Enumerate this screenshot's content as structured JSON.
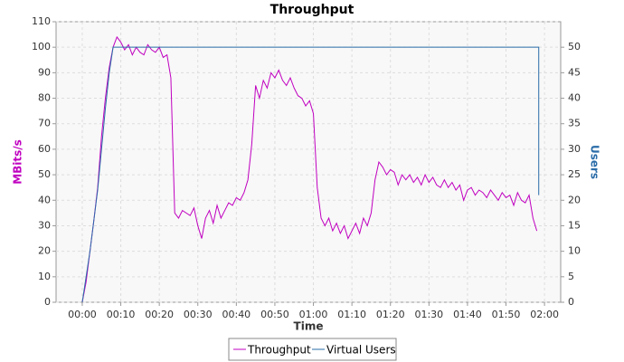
{
  "chart_data": {
    "type": "line",
    "title": "Throughput",
    "x_label": "Time",
    "y_label": "MBits/s",
    "y2_label": "Users",
    "xlim": [
      -6.8,
      124.2
    ],
    "xticks": [
      {
        "value": 0,
        "label": "00:00"
      },
      {
        "value": 10,
        "label": "00:10"
      },
      {
        "value": 20,
        "label": "00:20"
      },
      {
        "value": 30,
        "label": "00:30"
      },
      {
        "value": 40,
        "label": "00:40"
      },
      {
        "value": 50,
        "label": "00:50"
      },
      {
        "value": 60,
        "label": "01:00"
      },
      {
        "value": 70,
        "label": "01:10"
      },
      {
        "value": 80,
        "label": "01:20"
      },
      {
        "value": 90,
        "label": "01:30"
      },
      {
        "value": 100,
        "label": "01:40"
      },
      {
        "value": 110,
        "label": "01:50"
      },
      {
        "value": 120,
        "label": "02:00"
      }
    ],
    "ylim": [
      0,
      110
    ],
    "yticks": [
      0,
      10,
      20,
      30,
      40,
      50,
      60,
      70,
      80,
      90,
      100,
      110
    ],
    "y2lim": [
      0,
      55
    ],
    "y2ticks": [
      0,
      5,
      10,
      15,
      20,
      25,
      30,
      35,
      40,
      45,
      50
    ],
    "grid": true,
    "series": [
      {
        "name": "Throughput",
        "color": "#c000c0",
        "axis": "y",
        "x": [
          0,
          1,
          2,
          3,
          4,
          5,
          6,
          7,
          8,
          9,
          10,
          11,
          12,
          13,
          14,
          15,
          16,
          17,
          18,
          19,
          20,
          21,
          22,
          23,
          24,
          25,
          26,
          27,
          28,
          29,
          30,
          31,
          32,
          33,
          34,
          35,
          36,
          37,
          38,
          39,
          40,
          41,
          42,
          43,
          44,
          45,
          46,
          47,
          48,
          49,
          50,
          51,
          52,
          53,
          54,
          55,
          56,
          57,
          58,
          59,
          60,
          61,
          62,
          63,
          64,
          65,
          66,
          67,
          68,
          69,
          70,
          71,
          72,
          73,
          74,
          75,
          76,
          77,
          78,
          79,
          80,
          81,
          82,
          83,
          84,
          85,
          86,
          87,
          88,
          89,
          90,
          91,
          92,
          93,
          94,
          95,
          96,
          97,
          98,
          99,
          100,
          101,
          102,
          103,
          104,
          105,
          106,
          107,
          108,
          109,
          110,
          111,
          112,
          113,
          114,
          115,
          116,
          117,
          118
        ],
        "values": [
          0,
          8,
          20,
          32,
          45,
          65,
          80,
          92,
          100,
          104,
          102,
          99,
          101,
          97,
          100,
          98,
          97,
          101,
          99,
          98,
          100,
          96,
          97,
          88,
          35,
          33,
          36,
          35,
          34,
          37,
          30,
          25,
          33,
          36,
          31,
          38,
          33,
          36,
          39,
          38,
          41,
          40,
          43,
          48,
          62,
          85,
          80,
          87,
          84,
          90,
          88,
          91,
          87,
          85,
          88,
          84,
          81,
          80,
          77,
          79,
          74,
          45,
          33,
          30,
          33,
          28,
          31,
          27,
          30,
          25,
          28,
          31,
          27,
          33,
          30,
          35,
          48,
          55,
          53,
          50,
          52,
          51,
          46,
          50,
          48,
          50,
          47,
          49,
          46,
          50,
          47,
          49,
          46,
          45,
          48,
          45,
          47,
          44,
          46,
          40,
          44,
          45,
          42,
          44,
          43,
          41,
          44,
          42,
          40,
          43,
          41,
          42,
          38,
          43,
          40,
          39,
          42,
          33,
          28
        ]
      },
      {
        "name": "Virtual Users",
        "color": "#2a6ca8",
        "axis": "y2",
        "x": [
          0,
          2,
          4,
          6,
          7,
          8,
          118.5,
          118.5
        ],
        "values": [
          0,
          10,
          22,
          38,
          45,
          50,
          50,
          21
        ]
      }
    ]
  }
}
